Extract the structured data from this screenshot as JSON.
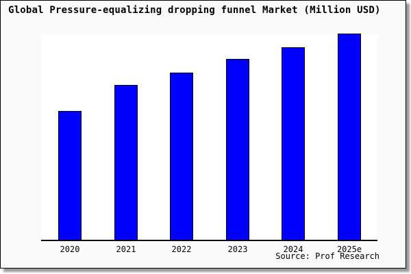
{
  "header": {
    "title": "Global Pressure-equalizing dropping funnel Market (Million USD)"
  },
  "footer": {
    "source": "Source: Prof Research"
  },
  "colors": {
    "bar": "#0000ff",
    "bar_border": "#000000",
    "plot_background": "#ffffff",
    "frame_background": "#fafafa",
    "axis": "#000000",
    "shadow": "#9a9a9a",
    "text": "#000000"
  },
  "chart_data": {
    "type": "bar",
    "title": "Global Pressure-equalizing dropping funnel Market (Million USD)",
    "categories": [
      "2020",
      "2021",
      "2022",
      "2023",
      "2024",
      "2025e"
    ],
    "values": [
      62.3,
      75.0,
      81.1,
      87.6,
      93.4,
      100
    ],
    "values_note": "No y-axis scale shown; values are relative bar heights normalized to 2025e = 100",
    "xlabel": "",
    "ylabel": "",
    "ylim": [
      0,
      100
    ],
    "grid": false,
    "legend_position": "none",
    "bar_color": "#0000ff",
    "source": "Source: Prof Research"
  }
}
